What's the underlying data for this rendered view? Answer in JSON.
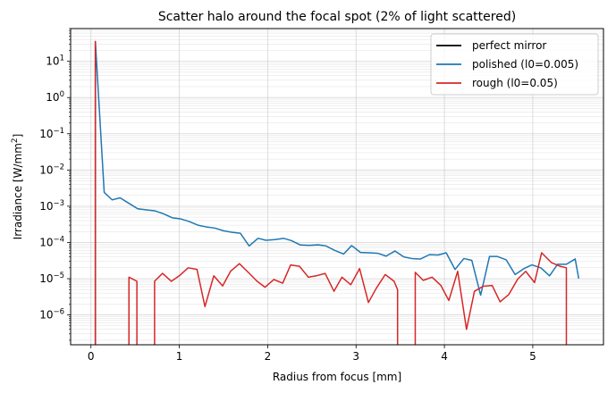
{
  "chart_data": {
    "type": "line",
    "title": "Scatter halo around the focal spot (2% of light scattered)",
    "xlabel": "Radius from focus [mm]",
    "ylabel": "Irradiance [W/mm²]",
    "ylabel_base": "Irradiance [W/mm",
    "ylabel_sup": "2",
    "ylabel_end": "]",
    "xlim": [
      -0.23,
      5.8
    ],
    "ylim": [
      1.5e-07,
      80
    ],
    "yscale": "log",
    "grid": true,
    "legend_position": "top-right",
    "x_ticks": [
      {
        "value": 0,
        "label": "0"
      },
      {
        "value": 1,
        "label": "1"
      },
      {
        "value": 2,
        "label": "2"
      },
      {
        "value": 3,
        "label": "3"
      },
      {
        "value": 4,
        "label": "4"
      },
      {
        "value": 5,
        "label": "5"
      }
    ],
    "y_ticks": [
      {
        "exp": -6,
        "label": "10",
        "sup": "−6"
      },
      {
        "exp": -5,
        "label": "10",
        "sup": "−5"
      },
      {
        "exp": -4,
        "label": "10",
        "sup": "−4"
      },
      {
        "exp": -3,
        "label": "10",
        "sup": "−3"
      },
      {
        "exp": -2,
        "label": "10",
        "sup": "−2"
      },
      {
        "exp": -1,
        "label": "10",
        "sup": "−1"
      },
      {
        "exp": 0,
        "label": "10",
        "sup": "0"
      },
      {
        "exp": 1,
        "label": "10",
        "sup": "1"
      }
    ],
    "series": [
      {
        "name": "perfect mirror",
        "color": "#000000",
        "x": [
          0.05,
          0.05,
          0.05
        ],
        "y": [
          1e-08,
          35,
          1e-08
        ]
      },
      {
        "name": "polished (l0=0.005)",
        "color": "#1f77b4",
        "x": [
          0.05,
          0.15,
          0.24,
          0.33,
          0.43,
          0.53,
          0.62,
          0.72,
          0.82,
          0.92,
          1.01,
          1.11,
          1.21,
          1.3,
          1.4,
          1.5,
          1.6,
          1.69,
          1.79,
          1.89,
          1.98,
          2.08,
          2.18,
          2.27,
          2.37,
          2.47,
          2.57,
          2.66,
          2.76,
          2.86,
          2.95,
          3.05,
          3.15,
          3.25,
          3.34,
          3.44,
          3.54,
          3.63,
          3.73,
          3.83,
          3.93,
          4.02,
          4.12,
          4.22,
          4.31,
          4.41,
          4.51,
          4.6,
          4.7,
          4.8,
          4.9,
          4.99,
          5.09,
          5.19,
          5.28,
          5.38,
          5.48,
          5.52
        ],
        "y": [
          35,
          0.0024,
          0.0015,
          0.0017,
          0.0012,
          0.00085,
          0.0008,
          0.00075,
          0.00062,
          0.00048,
          0.00045,
          0.00038,
          0.0003,
          0.00027,
          0.00025,
          0.00021,
          0.00019,
          0.00018,
          8e-05,
          0.00013,
          0.000115,
          0.00012,
          0.00013,
          0.000112,
          8.5e-05,
          8.3e-05,
          8.6e-05,
          8e-05,
          6e-05,
          4.8e-05,
          8.2e-05,
          5.3e-05,
          5.2e-05,
          5e-05,
          4.2e-05,
          5.8e-05,
          4e-05,
          3.6e-05,
          3.5e-05,
          4.6e-05,
          4.5e-05,
          5.2e-05,
          1.8e-05,
          3.6e-05,
          3.2e-05,
          3.5e-06,
          4.1e-05,
          4.1e-05,
          3.3e-05,
          1.3e-05,
          1.9e-05,
          2.4e-05,
          2e-05,
          1.2e-05,
          2.5e-05,
          2.5e-05,
          3.5e-05,
          1e-05
        ]
      },
      {
        "name": "rough (l0=0.05)",
        "color": "#d62728",
        "x": [
          0.05,
          0.05,
          0.05,
          0.43,
          0.43,
          0.52,
          0.52,
          0.72,
          0.72,
          0.81,
          0.91,
          1.0,
          1.1,
          1.2,
          1.29,
          1.39,
          1.49,
          1.58,
          1.68,
          1.78,
          1.88,
          1.97,
          2.07,
          2.17,
          2.26,
          2.36,
          2.46,
          2.55,
          2.65,
          2.75,
          2.84,
          2.94,
          3.04,
          3.14,
          3.23,
          3.33,
          3.43,
          3.47,
          3.47,
          3.67,
          3.67,
          3.76,
          3.86,
          3.96,
          4.05,
          4.15,
          4.25,
          4.34,
          4.44,
          4.54,
          4.63,
          4.73,
          4.83,
          4.92,
          5.02,
          5.1,
          5.21,
          5.31,
          5.38,
          5.38
        ],
        "y": [
          1e-08,
          35,
          1e-08,
          1e-08,
          1.1e-05,
          8.5e-06,
          1e-08,
          1e-08,
          8.5e-06,
          1.4e-05,
          8.5e-06,
          1.2e-05,
          2e-05,
          1.8e-05,
          1.7e-06,
          1.2e-05,
          6.3e-06,
          1.6e-05,
          2.6e-05,
          1.5e-05,
          8.5e-06,
          5.8e-06,
          9.5e-06,
          7.5e-06,
          2.4e-05,
          2.2e-05,
          1.1e-05,
          1.2e-05,
          1.4e-05,
          4.5e-06,
          1.1e-05,
          6.8e-06,
          1.9e-05,
          2.2e-06,
          5.5e-06,
          1.3e-05,
          8.5e-06,
          5e-06,
          1e-08,
          1e-08,
          1.5e-05,
          9e-06,
          1.1e-05,
          6.5e-06,
          2.5e-06,
          1.6e-05,
          4e-07,
          4.5e-06,
          6.2e-06,
          6.5e-06,
          2.3e-06,
          3.7e-06,
          9.8e-06,
          1.6e-05,
          7.8e-06,
          5.2e-05,
          2.8e-05,
          2.2e-05,
          2e-05,
          1e-08
        ]
      }
    ]
  }
}
